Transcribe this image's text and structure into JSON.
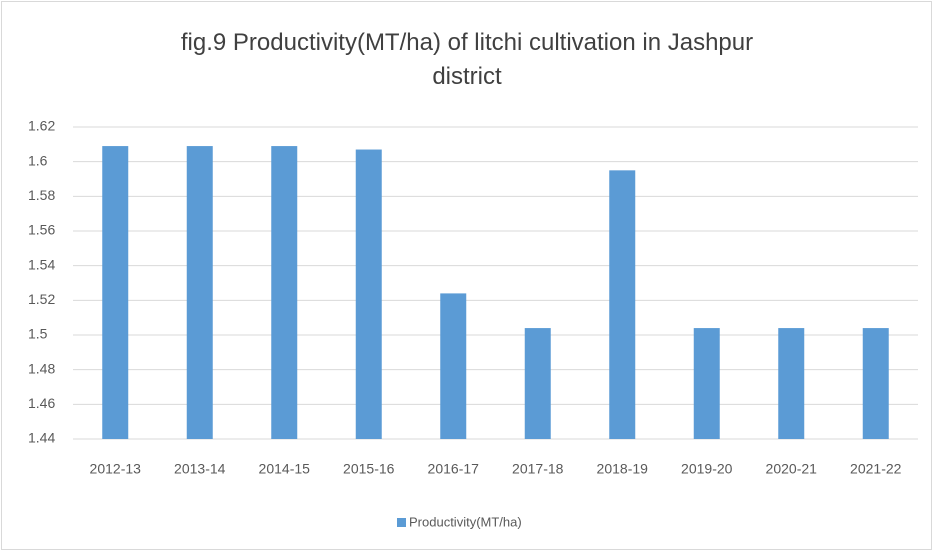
{
  "chart_data": {
    "type": "bar",
    "title": "fig.9 Productivity(MT/ha) of litchi cultivation in Jashpur district",
    "categories": [
      "2012-13",
      "2013-14",
      "2014-15",
      "2015-16",
      "2016-17",
      "2017-18",
      "2018-19",
      "2019-20",
      "2020-21",
      "2021-22"
    ],
    "series": [
      {
        "name": "Productivity(MT/ha)",
        "color": "#5b9bd5",
        "values": [
          1.609,
          1.609,
          1.609,
          1.607,
          1.524,
          1.504,
          1.595,
          1.504,
          1.504,
          1.504
        ]
      }
    ],
    "ylim": [
      1.44,
      1.62
    ],
    "yticks": [
      1.44,
      1.46,
      1.48,
      1.5,
      1.52,
      1.54,
      1.56,
      1.58,
      1.6,
      1.62
    ],
    "grid": true,
    "legend": "bottom"
  }
}
